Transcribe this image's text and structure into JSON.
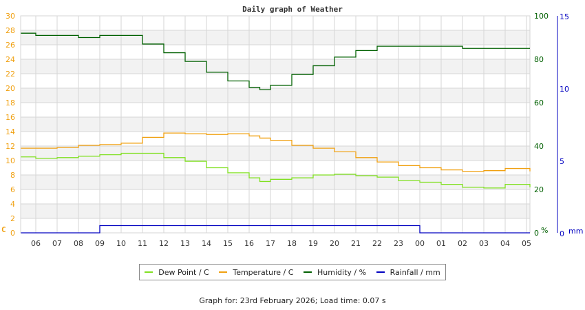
{
  "chart_data": {
    "type": "line",
    "title": "Daily graph of Weather",
    "x_tick_labels": [
      "06",
      "07",
      "08",
      "09",
      "10",
      "11",
      "12",
      "13",
      "14",
      "15",
      "16",
      "17",
      "18",
      "19",
      "20",
      "21",
      "22",
      "23",
      "00",
      "01",
      "02",
      "03",
      "04",
      "05"
    ],
    "left_axis": {
      "label": "C",
      "ticks": [
        0,
        2,
        4,
        6,
        8,
        10,
        12,
        14,
        16,
        18,
        20,
        22,
        24,
        26,
        28,
        30
      ],
      "range": [
        0,
        30
      ],
      "color": "#f0a010"
    },
    "right_axis_humidity": {
      "label": "%",
      "ticks": [
        0,
        20,
        40,
        60,
        80,
        100
      ],
      "range": [
        0,
        100
      ],
      "color": "#006000"
    },
    "right_axis_rain": {
      "label": "mm",
      "ticks": [
        0,
        5,
        10,
        15
      ],
      "range": [
        0,
        15
      ],
      "color": "#0000c0"
    },
    "grid": true,
    "legend_position": "bottom",
    "hours": [
      5.3,
      6,
      7,
      8,
      9,
      10,
      11,
      12,
      13,
      14,
      15,
      16,
      16.5,
      17,
      18,
      19,
      20,
      21,
      22,
      23,
      0,
      1,
      2,
      3,
      4,
      5.3
    ],
    "series": [
      {
        "name": "Dew Point / C",
        "color": "#80e020",
        "values": [
          10.5,
          10.3,
          10.4,
          10.6,
          10.8,
          11.0,
          11.0,
          10.4,
          9.9,
          9.0,
          8.3,
          7.6,
          7.1,
          7.4,
          7.6,
          8.0,
          8.1,
          7.9,
          7.7,
          7.2,
          7.0,
          6.7,
          6.3,
          6.2,
          6.7,
          6.3
        ]
      },
      {
        "name": "Temperature / C",
        "color": "#f0a010",
        "values": [
          11.7,
          11.7,
          11.8,
          12.1,
          12.2,
          12.4,
          13.2,
          13.8,
          13.7,
          13.6,
          13.7,
          13.4,
          13.1,
          12.8,
          12.1,
          11.7,
          11.2,
          10.4,
          9.8,
          9.3,
          9.0,
          8.7,
          8.5,
          8.6,
          8.9,
          8.5
        ]
      },
      {
        "name": "Humidity / %",
        "color": "#006000",
        "values": [
          92,
          91,
          91,
          90,
          91,
          91,
          87,
          83,
          79,
          74,
          70,
          67,
          66,
          68,
          73,
          77,
          81,
          84,
          86,
          86,
          86,
          86,
          85,
          85,
          85,
          85
        ]
      },
      {
        "name": "Rainfall / mm",
        "color": "#0000c0",
        "values": [
          0,
          0,
          0,
          0,
          0.5,
          0.5,
          0.5,
          0.5,
          0.5,
          0.5,
          0.5,
          0.5,
          0.5,
          0.5,
          0.5,
          0.5,
          0.5,
          0.5,
          0.5,
          0.5,
          0,
          0,
          0,
          0,
          0,
          0
        ]
      }
    ]
  },
  "legend": {
    "items": [
      {
        "label": "Dew Point / C",
        "color": "#80e020"
      },
      {
        "label": "Temperature / C",
        "color": "#f0a010"
      },
      {
        "label": "Humidity / %",
        "color": "#006000"
      },
      {
        "label": "Rainfall / mm",
        "color": "#0000c0"
      }
    ]
  },
  "footer": {
    "text": "Graph for: 23rd February 2026; Load time: 0.07 s"
  }
}
